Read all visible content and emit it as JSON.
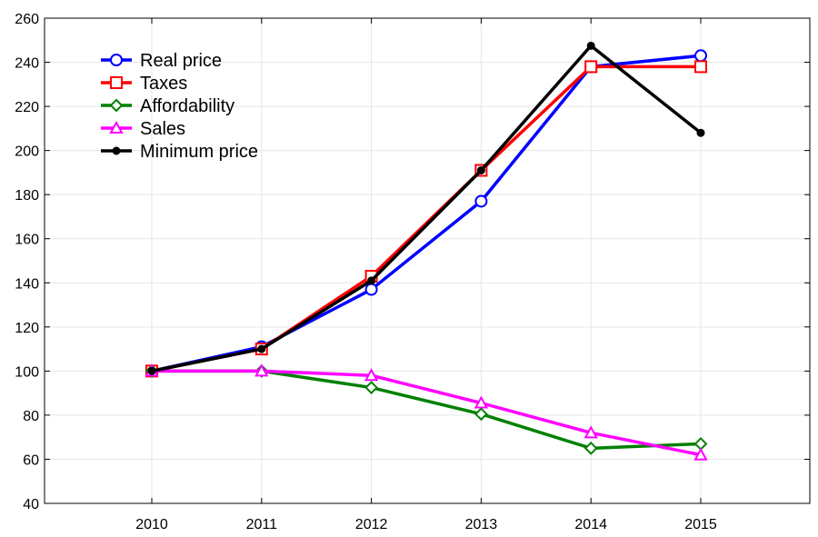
{
  "chart_data": {
    "type": "line",
    "title": "",
    "xlabel": "",
    "ylabel": "",
    "categories": [
      "2010",
      "2011",
      "2012",
      "2013",
      "2014",
      "2015"
    ],
    "ylim": [
      40,
      260
    ],
    "yticks": [
      40,
      60,
      80,
      100,
      120,
      140,
      160,
      180,
      200,
      220,
      240,
      260
    ],
    "grid": true,
    "legend_position": "top-left",
    "series": [
      {
        "name": "Real price",
        "color": "#0000ff",
        "marker": "circle",
        "values": [
          100,
          111,
          137,
          177,
          238,
          243
        ]
      },
      {
        "name": "Taxes",
        "color": "#ff0000",
        "marker": "square",
        "values": [
          100,
          110,
          143,
          191,
          238,
          238
        ]
      },
      {
        "name": "Affordability",
        "color": "#008000",
        "marker": "diamond",
        "values": [
          100,
          100,
          92.5,
          80.5,
          65,
          67
        ]
      },
      {
        "name": "Sales",
        "color": "#ff00ff",
        "marker": "triangle",
        "values": [
          100,
          100,
          98,
          85.5,
          72,
          62
        ]
      },
      {
        "name": "Minimum price",
        "color": "#000000",
        "marker": "dot",
        "values": [
          100,
          110,
          141,
          191,
          247.5,
          208
        ]
      }
    ]
  }
}
